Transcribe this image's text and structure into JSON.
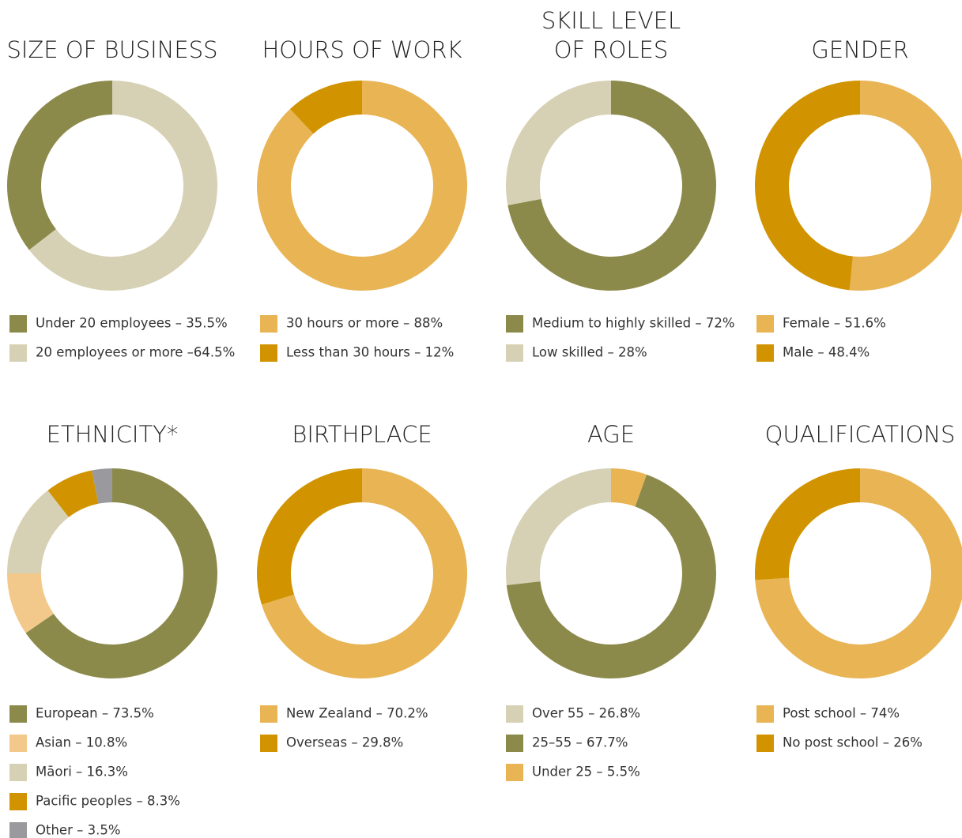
{
  "chart_data": [
    {
      "type": "donut",
      "title": "SIZE OF BUSINESS",
      "direction": "counterclockwise",
      "categories": [
        "Under 20 employees – 35.5%",
        "20 employees or more –64.5%"
      ],
      "values": [
        35.5,
        64.5
      ],
      "colors": [
        "#8c8a4b",
        "#d6d1b4"
      ]
    },
    {
      "type": "donut",
      "title": "HOURS OF WORK",
      "direction": "clockwise",
      "categories": [
        "30 hours or more – 88%",
        "Less than 30 hours – 12%"
      ],
      "values": [
        88,
        12
      ],
      "colors": [
        "#e8b454",
        "#d19400"
      ]
    },
    {
      "type": "donut",
      "title": [
        "SKILL LEVEL",
        "OF ROLES"
      ],
      "direction": "clockwise",
      "categories": [
        "Medium to highly skilled – 72%",
        "Low skilled – 28%"
      ],
      "values": [
        72,
        28
      ],
      "colors": [
        "#8c8a4b",
        "#d6d1b4"
      ]
    },
    {
      "type": "donut",
      "title": "GENDER",
      "direction": "clockwise",
      "categories": [
        "Female – 51.6%",
        "Male – 48.4%"
      ],
      "values": [
        51.6,
        48.4
      ],
      "colors": [
        "#e8b454",
        "#d19400"
      ]
    },
    {
      "type": "donut",
      "title": "ETHNICITY*",
      "direction": "clockwise",
      "categories": [
        "European – 73.5%",
        "Asian – 10.8%",
        "Māori – 16.3%",
        "Pacific peoples – 8.3%",
        "Other – 3.5%"
      ],
      "values": [
        73.5,
        10.8,
        16.3,
        8.3,
        3.5
      ],
      "colors": [
        "#8c8a4b",
        "#f2c98a",
        "#d6d1b4",
        "#d19400",
        "#9a9a9e"
      ]
    },
    {
      "type": "donut",
      "title": "BIRTHPLACE",
      "direction": "clockwise",
      "categories": [
        "New Zealand – 70.2%",
        "Overseas – 29.8%"
      ],
      "values": [
        70.2,
        29.8
      ],
      "colors": [
        "#e8b454",
        "#d19400"
      ]
    },
    {
      "type": "donut",
      "title": "AGE",
      "direction": "counterclockwise",
      "categories": [
        "Over 55 – 26.8%",
        "25–55 – 67.7%",
        "Under 25 – 5.5%"
      ],
      "values": [
        26.8,
        67.7,
        5.5
      ],
      "colors": [
        "#d6d1b4",
        "#8c8a4b",
        "#e8b454"
      ]
    },
    {
      "type": "donut",
      "title": "QUALIFICATIONS",
      "direction": "clockwise",
      "categories": [
        "Post school – 74%",
        "No post school – 26%"
      ],
      "values": [
        74,
        26
      ],
      "colors": [
        "#e8b454",
        "#d19400"
      ]
    }
  ]
}
